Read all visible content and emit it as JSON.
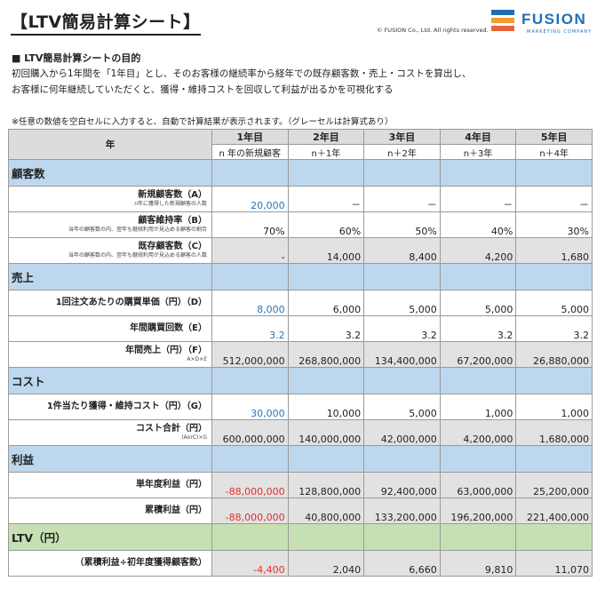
{
  "header": {
    "title": "【LTV簡易計算シート】",
    "copyright": "© FUSION Co., Ltd. All rights reserved.",
    "logo": {
      "name": "FUSION",
      "sub": "MARKETING COMPANY",
      "colors": [
        "#1f6fb5",
        "#f39c33",
        "#e8643c"
      ]
    }
  },
  "purpose": {
    "heading": "■ LTV簡易計算シートの目的",
    "lines": [
      "初回購入から1年間を「1年目」とし、そのお客様の継続率から経年での既存顧客数・売上・コストを算出し、",
      "お客様に何年継続していただくと、獲得・維持コストを回収して利益が出るかを可視化する"
    ]
  },
  "note": "※任意の数値を空白セルに入力すると、自動で計算結果が表示されます。（グレーセルは計算式あり）",
  "table": {
    "corner": "年",
    "years": [
      "1年目",
      "2年目",
      "3年目",
      "4年目",
      "5年目"
    ],
    "subheaders": [
      "n 年の新規顧客",
      "n＋1年",
      "n＋2年",
      "n＋3年",
      "n＋4年"
    ],
    "sections": [
      {
        "title": "顧客数",
        "color": "blue",
        "rows": [
          {
            "label": "新規顧客数（A）",
            "sub": "n年に獲得した新規顧客の人数",
            "values": [
              "20,000",
              "－",
              "－",
              "－",
              "－"
            ],
            "styles": [
              "blue",
              "",
              "",
              "",
              ""
            ]
          },
          {
            "label": "顧客維持率（B）",
            "sub": "当年の顧客数の内、翌年も継続利用が見込める顧客の割合",
            "values": [
              "70%",
              "60%",
              "50%",
              "40%",
              "30%"
            ],
            "styles": [
              "",
              "",
              "",
              "",
              ""
            ]
          },
          {
            "label": "既存顧客数（C）",
            "sub": "当年の顧客数の内、翌年も継続利用が見込める顧客の人数",
            "values": [
              "-",
              "14,000",
              "8,400",
              "4,200",
              "1,680"
            ],
            "styles": [
              "gray",
              "gray",
              "gray",
              "gray",
              "gray"
            ]
          }
        ]
      },
      {
        "title": "売上",
        "color": "blue",
        "rows": [
          {
            "label": "1回注文あたりの購買単価（円）（D）",
            "sub": "",
            "values": [
              "8,000",
              "6,000",
              "5,000",
              "5,000",
              "5,000"
            ],
            "styles": [
              "blue",
              "",
              "",
              "",
              ""
            ]
          },
          {
            "label": "年間購買回数（E）",
            "sub": "",
            "values": [
              "3.2",
              "3.2",
              "3.2",
              "3.2",
              "3.2"
            ],
            "styles": [
              "blue",
              "",
              "",
              "",
              ""
            ]
          },
          {
            "label": "年間売上（円）（F）",
            "sub": "A×D×E",
            "values": [
              "512,000,000",
              "268,800,000",
              "134,400,000",
              "67,200,000",
              "26,880,000"
            ],
            "styles": [
              "gray",
              "gray",
              "gray",
              "gray",
              "gray"
            ]
          }
        ]
      },
      {
        "title": "コスト",
        "color": "blue",
        "rows": [
          {
            "label": "1件当たり獲得・維持コスト（円）（G）",
            "sub": "",
            "values": [
              "30,000",
              "10,000",
              "5,000",
              "1,000",
              "1,000"
            ],
            "styles": [
              "blue",
              "",
              "",
              "",
              ""
            ]
          },
          {
            "label": "コスト合計（円）",
            "sub": "(AorC)×G",
            "values": [
              "600,000,000",
              "140,000,000",
              "42,000,000",
              "4,200,000",
              "1,680,000"
            ],
            "styles": [
              "gray",
              "gray",
              "gray",
              "gray",
              "gray"
            ]
          }
        ]
      },
      {
        "title": "利益",
        "color": "blue",
        "rows": [
          {
            "label": "単年度利益（円）",
            "sub": "",
            "values": [
              "-88,000,000",
              "128,800,000",
              "92,400,000",
              "63,000,000",
              "25,200,000"
            ],
            "styles": [
              "gray red",
              "gray",
              "gray",
              "gray",
              "gray"
            ]
          },
          {
            "label": "累積利益（円）",
            "sub": "",
            "values": [
              "-88,000,000",
              "40,800,000",
              "133,200,000",
              "196,200,000",
              "221,400,000"
            ],
            "styles": [
              "gray red",
              "gray",
              "gray",
              "gray",
              "gray"
            ]
          }
        ]
      },
      {
        "title": "LTV（円）",
        "color": "green",
        "rows": [
          {
            "label": "（累積利益÷初年度獲得顧客数）",
            "sub": "",
            "values": [
              "-4,400",
              "2,040",
              "6,660",
              "9,810",
              "11,070"
            ],
            "styles": [
              "gray red",
              "gray",
              "gray",
              "gray",
              "gray"
            ]
          }
        ]
      }
    ]
  }
}
